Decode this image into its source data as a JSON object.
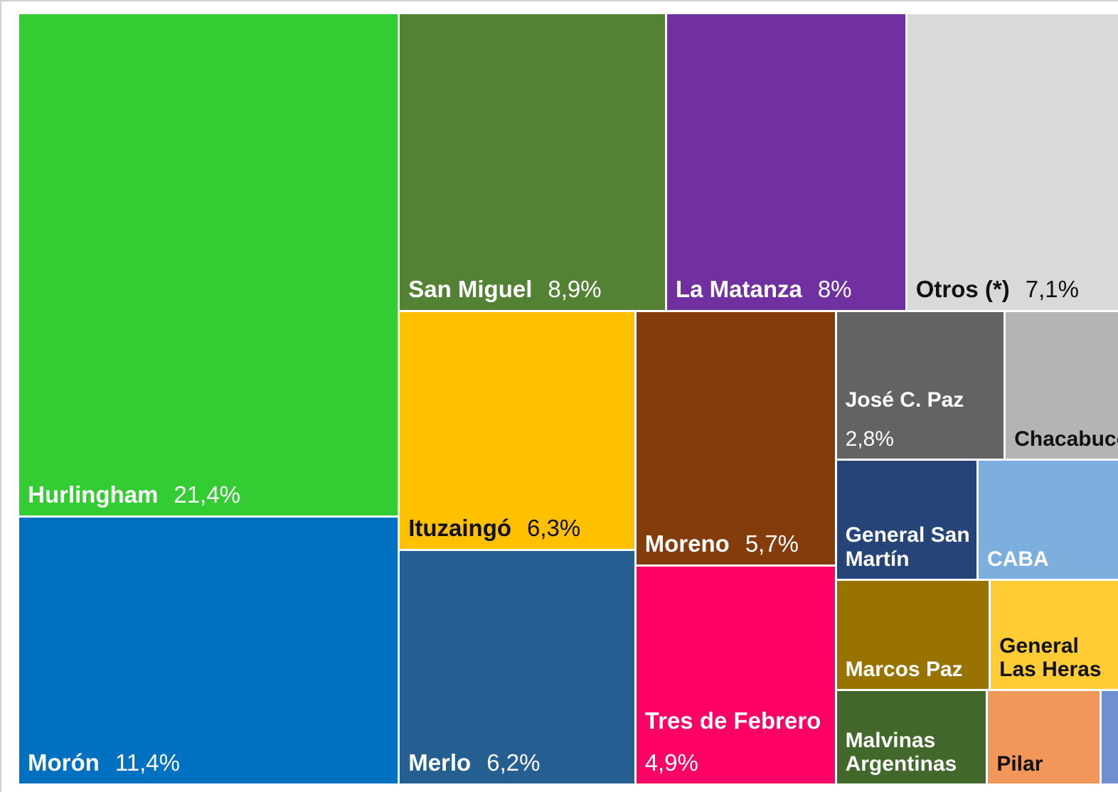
{
  "chart_data": {
    "type": "treemap",
    "categories": [
      "Hurlingham",
      "Morón",
      "San Miguel",
      "La Matanza",
      "Otros (*)",
      "Ituzaingó",
      "Merlo",
      "Moreno",
      "Tres de Febrero",
      "José C. Paz",
      "Chacabuco",
      "General San Martín",
      "CABA",
      "Marcos Paz",
      "General Las Heras",
      "Malvinas Argentinas",
      "Pilar",
      null
    ],
    "values": [
      21.4,
      11.4,
      8.9,
      8,
      7.1,
      6.3,
      6.2,
      5.7,
      4.9,
      2.8,
      1.9,
      1.9,
      1.9,
      1.9,
      1.6,
      1.6,
      1.2,
      0.2
    ],
    "value_labels": [
      "21,4%",
      "11,4%",
      "8,9%",
      "8%",
      "7,1%",
      "6,3%",
      "6,2%",
      "5,7%",
      "4,9%",
      "2,8%",
      null,
      null,
      null,
      null,
      null,
      null,
      null,
      null
    ],
    "colors": [
      "#33cc33",
      "#0070c0",
      "#548235",
      "#7030a0",
      "#d9d9d9",
      "#ffc000",
      "#255e91",
      "#843c0c",
      "#ff0066",
      "#636363",
      "#b4b4b4",
      "#264478",
      "#7cafdd",
      "#997300",
      "#ffcc33",
      "#43682b",
      "#f1975a",
      "#6f8fd0"
    ]
  }
}
